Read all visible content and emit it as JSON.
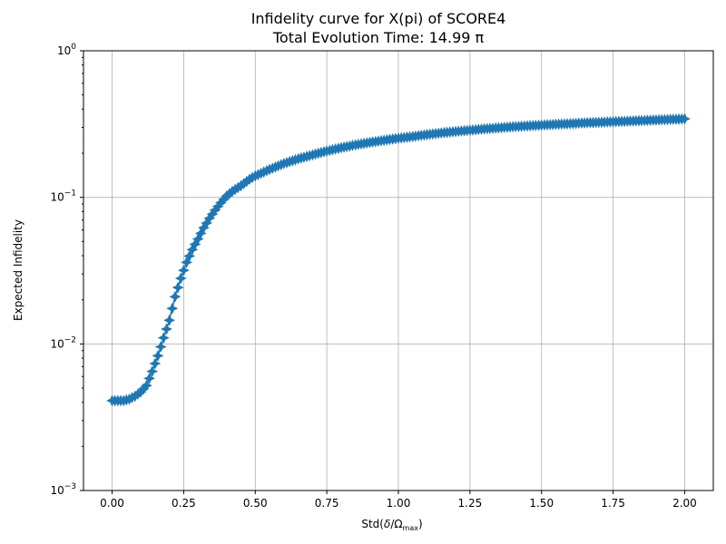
{
  "chart_data": {
    "type": "line",
    "title": "Infidelity curve for X(pi) of SCORE4",
    "subtitle": "Total Evolution Time: 14.99 π",
    "xlabel_main": "Std(",
    "xlabel_delta": "δ",
    "xlabel_slash": "/",
    "xlabel_omega": "Ω",
    "xlabel_sub": "max",
    "xlabel_close": ")",
    "ylabel": "Expected Infidelity",
    "xlim": [
      -0.1,
      2.1
    ],
    "ylim": [
      0.001,
      1
    ],
    "yscale": "log",
    "grid": true,
    "x_ticks": [
      0.0,
      0.25,
      0.5,
      0.75,
      1.0,
      1.25,
      1.5,
      1.75,
      2.0
    ],
    "x_tick_labels": [
      "0.00",
      "0.25",
      "0.50",
      "0.75",
      "1.00",
      "1.25",
      "1.50",
      "1.75",
      "2.00"
    ],
    "y_ticks": [
      {
        "value": 1,
        "base": "10",
        "exp": "0"
      },
      {
        "value": 0.1,
        "base": "10",
        "exp": "−1"
      },
      {
        "value": 0.01,
        "base": "10",
        "exp": "−2"
      },
      {
        "value": 0.001,
        "base": "10",
        "exp": "−3"
      }
    ],
    "series": [
      {
        "color": "#1f77b4",
        "marker": "star",
        "x": [
          0.0,
          0.02,
          0.04,
          0.06,
          0.08,
          0.1,
          0.12,
          0.14,
          0.16,
          0.18,
          0.2,
          0.22,
          0.24,
          0.26,
          0.28,
          0.3,
          0.32,
          0.34,
          0.36,
          0.38,
          0.4,
          0.42,
          0.45,
          0.48,
          0.5,
          0.55,
          0.6,
          0.65,
          0.7,
          0.75,
          0.8,
          0.85,
          0.9,
          0.95,
          1.0,
          1.05,
          1.1,
          1.15,
          1.2,
          1.25,
          1.3,
          1.35,
          1.4,
          1.45,
          1.5,
          1.55,
          1.6,
          1.65,
          1.7,
          1.75,
          1.8,
          1.85,
          1.9,
          1.95,
          2.0
        ],
        "y": [
          0.0041,
          0.0041,
          0.0041,
          0.0042,
          0.0044,
          0.0047,
          0.0052,
          0.0065,
          0.0083,
          0.011,
          0.0145,
          0.021,
          0.028,
          0.036,
          0.044,
          0.052,
          0.062,
          0.072,
          0.082,
          0.092,
          0.102,
          0.11,
          0.12,
          0.133,
          0.14,
          0.155,
          0.17,
          0.183,
          0.195,
          0.207,
          0.218,
          0.228,
          0.237,
          0.245,
          0.253,
          0.26,
          0.268,
          0.275,
          0.281,
          0.287,
          0.293,
          0.298,
          0.303,
          0.307,
          0.311,
          0.315,
          0.318,
          0.322,
          0.325,
          0.328,
          0.331,
          0.334,
          0.337,
          0.34,
          0.343
        ]
      }
    ]
  }
}
